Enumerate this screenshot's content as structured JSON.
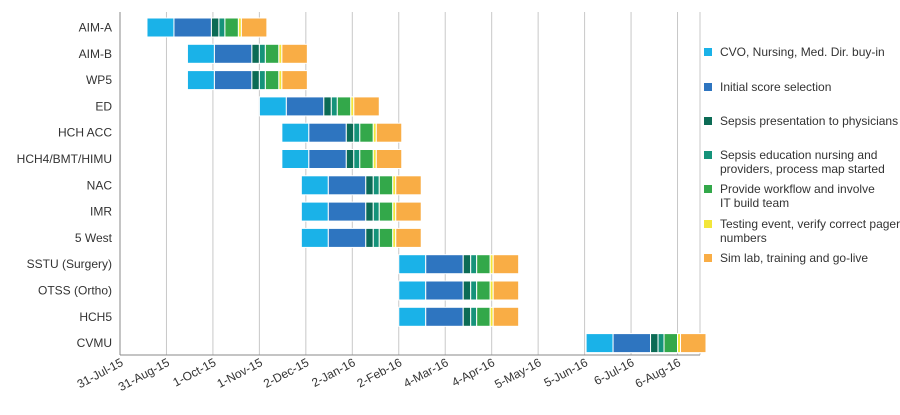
{
  "chart_data": {
    "type": "bar",
    "orientation": "horizontal",
    "stacked": true,
    "title": "",
    "xlabel": "",
    "ylabel": "",
    "x_ticks": [
      "31-Jul-15",
      "31-Aug-15",
      "1-Oct-15",
      "1-Nov-15",
      "2-Dec-15",
      "2-Jan-16",
      "2-Feb-16",
      "4-Mar-16",
      "4-Apr-16",
      "5-May-16",
      "5-Jun-16",
      "6-Jul-16",
      "6-Aug-16"
    ],
    "xlim": [
      "2015-07-31",
      "2016-08-21"
    ],
    "grid": "vertical",
    "legend_position": "right",
    "colors": {
      "CVO, Nursing, Med. Dir. buy-in": "#1ab2e8",
      "Initial score selection": "#2e75c0",
      "Sepsis presentation to physicians": "#0c6b55",
      "Sepsis education nursing and providers, process map started": "#15937a",
      "Provide workflow and involve IT build team": "#33a84a",
      "Testing event, verify correct pager numbers": "#f2e63a",
      "Sim lab, training and go-live": "#f9ad45"
    },
    "legend": [
      {
        "name": "CVO, Nursing, Med. Dir. buy-in",
        "lines": [
          "CVO, Nursing, Med. Dir. buy-in"
        ]
      },
      {
        "name": "Initial score selection",
        "lines": [
          "Initial score selection"
        ]
      },
      {
        "name": "Sepsis presentation to physicians",
        "lines": [
          "Sepsis presentation to physicians"
        ]
      },
      {
        "name": "Sepsis education nursing and providers, process map started",
        "lines": [
          "Sepsis education nursing and",
          "providers, process map started"
        ]
      },
      {
        "name": "Provide workflow and involve IT build team",
        "lines": [
          "Provide workflow and involve",
          "IT build team"
        ]
      },
      {
        "name": "Testing event, verify correct pager numbers",
        "lines": [
          "Testing event, verify correct pager",
          "numbers"
        ]
      },
      {
        "name": "Sim lab, training and go-live",
        "lines": [
          "Sim lab, training and go-live"
        ]
      }
    ],
    "categories": [
      "AIM-A",
      "AIM-B",
      "WP5",
      "ED",
      "HCH ACC",
      "HCH4/BMT/HIMU",
      "NAC",
      "IMR",
      "5 West",
      "SSTU (Surgery)",
      "OTSS (Ortho)",
      "HCH5",
      "CVMU"
    ],
    "tasks": [
      {
        "category": "AIM-A",
        "segments": [
          {
            "phase": "CVO, Nursing, Med. Dir. buy-in",
            "start": "2015-08-18",
            "end": "2015-09-05"
          },
          {
            "phase": "Initial score selection",
            "start": "2015-09-05",
            "end": "2015-09-30"
          },
          {
            "phase": "Sepsis presentation to physicians",
            "start": "2015-09-30",
            "end": "2015-10-05"
          },
          {
            "phase": "Sepsis education nursing and providers, process map started",
            "start": "2015-10-05",
            "end": "2015-10-09"
          },
          {
            "phase": "Provide workflow and involve IT build team",
            "start": "2015-10-09",
            "end": "2015-10-18"
          },
          {
            "phase": "Testing event, verify correct pager numbers",
            "start": "2015-10-18",
            "end": "2015-10-20"
          },
          {
            "phase": "Sim lab, training and go-live",
            "start": "2015-10-20",
            "end": "2015-11-06"
          }
        ]
      },
      {
        "category": "AIM-B",
        "segments": [
          {
            "phase": "CVO, Nursing, Med. Dir. buy-in",
            "start": "2015-09-14",
            "end": "2015-10-02"
          },
          {
            "phase": "Initial score selection",
            "start": "2015-10-02",
            "end": "2015-10-27"
          },
          {
            "phase": "Sepsis presentation to physicians",
            "start": "2015-10-27",
            "end": "2015-11-01"
          },
          {
            "phase": "Sepsis education nursing and providers, process map started",
            "start": "2015-11-01",
            "end": "2015-11-05"
          },
          {
            "phase": "Provide workflow and involve IT build team",
            "start": "2015-11-05",
            "end": "2015-11-14"
          },
          {
            "phase": "Testing event, verify correct pager numbers",
            "start": "2015-11-14",
            "end": "2015-11-16"
          },
          {
            "phase": "Sim lab, training and go-live",
            "start": "2015-11-16",
            "end": "2015-12-03"
          }
        ]
      },
      {
        "category": "WP5",
        "segments": [
          {
            "phase": "CVO, Nursing, Med. Dir. buy-in",
            "start": "2015-09-14",
            "end": "2015-10-02"
          },
          {
            "phase": "Initial score selection",
            "start": "2015-10-02",
            "end": "2015-10-27"
          },
          {
            "phase": "Sepsis presentation to physicians",
            "start": "2015-10-27",
            "end": "2015-11-01"
          },
          {
            "phase": "Sepsis education nursing and providers, process map started",
            "start": "2015-11-01",
            "end": "2015-11-05"
          },
          {
            "phase": "Provide workflow and involve IT build team",
            "start": "2015-11-05",
            "end": "2015-11-14"
          },
          {
            "phase": "Testing event, verify correct pager numbers",
            "start": "2015-11-14",
            "end": "2015-11-16"
          },
          {
            "phase": "Sim lab, training and go-live",
            "start": "2015-11-16",
            "end": "2015-12-03"
          }
        ]
      },
      {
        "category": "ED",
        "segments": [
          {
            "phase": "CVO, Nursing, Med. Dir. buy-in",
            "start": "2015-11-01",
            "end": "2015-11-19"
          },
          {
            "phase": "Initial score selection",
            "start": "2015-11-19",
            "end": "2015-12-14"
          },
          {
            "phase": "Sepsis presentation to physicians",
            "start": "2015-12-14",
            "end": "2015-12-19"
          },
          {
            "phase": "Sepsis education nursing and providers, process map started",
            "start": "2015-12-19",
            "end": "2015-12-23"
          },
          {
            "phase": "Provide workflow and involve IT build team",
            "start": "2015-12-23",
            "end": "2016-01-01"
          },
          {
            "phase": "Testing event, verify correct pager numbers",
            "start": "2016-01-01",
            "end": "2016-01-03"
          },
          {
            "phase": "Sim lab, training and go-live",
            "start": "2016-01-03",
            "end": "2016-01-20"
          }
        ]
      },
      {
        "category": "HCH ACC",
        "segments": [
          {
            "phase": "CVO, Nursing, Med. Dir. buy-in",
            "start": "2015-11-16",
            "end": "2015-12-04"
          },
          {
            "phase": "Initial score selection",
            "start": "2015-12-04",
            "end": "2015-12-29"
          },
          {
            "phase": "Sepsis presentation to physicians",
            "start": "2015-12-29",
            "end": "2016-01-03"
          },
          {
            "phase": "Sepsis education nursing and providers, process map started",
            "start": "2016-01-03",
            "end": "2016-01-07"
          },
          {
            "phase": "Provide workflow and involve IT build team",
            "start": "2016-01-07",
            "end": "2016-01-16"
          },
          {
            "phase": "Testing event, verify correct pager numbers",
            "start": "2016-01-16",
            "end": "2016-01-18"
          },
          {
            "phase": "Sim lab, training and go-live",
            "start": "2016-01-18",
            "end": "2016-02-04"
          }
        ]
      },
      {
        "category": "HCH4/BMT/HIMU",
        "segments": [
          {
            "phase": "CVO, Nursing, Med. Dir. buy-in",
            "start": "2015-11-16",
            "end": "2015-12-04"
          },
          {
            "phase": "Initial score selection",
            "start": "2015-12-04",
            "end": "2015-12-29"
          },
          {
            "phase": "Sepsis presentation to physicians",
            "start": "2015-12-29",
            "end": "2016-01-03"
          },
          {
            "phase": "Sepsis education nursing and providers, process map started",
            "start": "2016-01-03",
            "end": "2016-01-07"
          },
          {
            "phase": "Provide workflow and involve IT build team",
            "start": "2016-01-07",
            "end": "2016-01-16"
          },
          {
            "phase": "Testing event, verify correct pager numbers",
            "start": "2016-01-16",
            "end": "2016-01-18"
          },
          {
            "phase": "Sim lab, training and go-live",
            "start": "2016-01-18",
            "end": "2016-02-04"
          }
        ]
      },
      {
        "category": "NAC",
        "segments": [
          {
            "phase": "CVO, Nursing, Med. Dir. buy-in",
            "start": "2015-11-29",
            "end": "2015-12-17"
          },
          {
            "phase": "Initial score selection",
            "start": "2015-12-17",
            "end": "2016-01-11"
          },
          {
            "phase": "Sepsis presentation to physicians",
            "start": "2016-01-11",
            "end": "2016-01-16"
          },
          {
            "phase": "Sepsis education nursing and providers, process map started",
            "start": "2016-01-16",
            "end": "2016-01-20"
          },
          {
            "phase": "Provide workflow and involve IT build team",
            "start": "2016-01-20",
            "end": "2016-01-29"
          },
          {
            "phase": "Testing event, verify correct pager numbers",
            "start": "2016-01-29",
            "end": "2016-01-31"
          },
          {
            "phase": "Sim lab, training and go-live",
            "start": "2016-01-31",
            "end": "2016-02-17"
          }
        ]
      },
      {
        "category": "IMR",
        "segments": [
          {
            "phase": "CVO, Nursing, Med. Dir. buy-in",
            "start": "2015-11-29",
            "end": "2015-12-17"
          },
          {
            "phase": "Initial score selection",
            "start": "2015-12-17",
            "end": "2016-01-11"
          },
          {
            "phase": "Sepsis presentation to physicians",
            "start": "2016-01-11",
            "end": "2016-01-16"
          },
          {
            "phase": "Sepsis education nursing and providers, process map started",
            "start": "2016-01-16",
            "end": "2016-01-20"
          },
          {
            "phase": "Provide workflow and involve IT build team",
            "start": "2016-01-20",
            "end": "2016-01-29"
          },
          {
            "phase": "Testing event, verify correct pager numbers",
            "start": "2016-01-29",
            "end": "2016-01-31"
          },
          {
            "phase": "Sim lab, training and go-live",
            "start": "2016-01-31",
            "end": "2016-02-17"
          }
        ]
      },
      {
        "category": "5 West",
        "segments": [
          {
            "phase": "CVO, Nursing, Med. Dir. buy-in",
            "start": "2015-11-29",
            "end": "2015-12-17"
          },
          {
            "phase": "Initial score selection",
            "start": "2015-12-17",
            "end": "2016-01-11"
          },
          {
            "phase": "Sepsis presentation to physicians",
            "start": "2016-01-11",
            "end": "2016-01-16"
          },
          {
            "phase": "Sepsis education nursing and providers, process map started",
            "start": "2016-01-16",
            "end": "2016-01-20"
          },
          {
            "phase": "Provide workflow and involve IT build team",
            "start": "2016-01-20",
            "end": "2016-01-29"
          },
          {
            "phase": "Testing event, verify correct pager numbers",
            "start": "2016-01-29",
            "end": "2016-01-31"
          },
          {
            "phase": "Sim lab, training and go-live",
            "start": "2016-01-31",
            "end": "2016-02-17"
          }
        ]
      },
      {
        "category": "SSTU (Surgery)",
        "segments": [
          {
            "phase": "CVO, Nursing, Med. Dir. buy-in",
            "start": "2016-02-02",
            "end": "2016-02-20"
          },
          {
            "phase": "Initial score selection",
            "start": "2016-02-20",
            "end": "2016-03-16"
          },
          {
            "phase": "Sepsis presentation to physicians",
            "start": "2016-03-16",
            "end": "2016-03-21"
          },
          {
            "phase": "Sepsis education nursing and providers, process map started",
            "start": "2016-03-21",
            "end": "2016-03-25"
          },
          {
            "phase": "Provide workflow and involve IT build team",
            "start": "2016-03-25",
            "end": "2016-04-03"
          },
          {
            "phase": "Testing event, verify correct pager numbers",
            "start": "2016-04-03",
            "end": "2016-04-05"
          },
          {
            "phase": "Sim lab, training and go-live",
            "start": "2016-04-05",
            "end": "2016-04-22"
          }
        ]
      },
      {
        "category": "OTSS (Ortho)",
        "segments": [
          {
            "phase": "CVO, Nursing, Med. Dir. buy-in",
            "start": "2016-02-02",
            "end": "2016-02-20"
          },
          {
            "phase": "Initial score selection",
            "start": "2016-02-20",
            "end": "2016-03-16"
          },
          {
            "phase": "Sepsis presentation to physicians",
            "start": "2016-03-16",
            "end": "2016-03-21"
          },
          {
            "phase": "Sepsis education nursing and providers, process map started",
            "start": "2016-03-21",
            "end": "2016-03-25"
          },
          {
            "phase": "Provide workflow and involve IT build team",
            "start": "2016-03-25",
            "end": "2016-04-03"
          },
          {
            "phase": "Testing event, verify correct pager numbers",
            "start": "2016-04-03",
            "end": "2016-04-05"
          },
          {
            "phase": "Sim lab, training and go-live",
            "start": "2016-04-05",
            "end": "2016-04-22"
          }
        ]
      },
      {
        "category": "HCH5",
        "segments": [
          {
            "phase": "CVO, Nursing, Med. Dir. buy-in",
            "start": "2016-02-02",
            "end": "2016-02-20"
          },
          {
            "phase": "Initial score selection",
            "start": "2016-02-20",
            "end": "2016-03-16"
          },
          {
            "phase": "Sepsis presentation to physicians",
            "start": "2016-03-16",
            "end": "2016-03-21"
          },
          {
            "phase": "Sepsis education nursing and providers, process map started",
            "start": "2016-03-21",
            "end": "2016-03-25"
          },
          {
            "phase": "Provide workflow and involve IT build team",
            "start": "2016-03-25",
            "end": "2016-04-03"
          },
          {
            "phase": "Testing event, verify correct pager numbers",
            "start": "2016-04-03",
            "end": "2016-04-05"
          },
          {
            "phase": "Sim lab, training and go-live",
            "start": "2016-04-05",
            "end": "2016-04-22"
          }
        ]
      },
      {
        "category": "CVMU",
        "segments": [
          {
            "phase": "CVO, Nursing, Med. Dir. buy-in",
            "start": "2016-06-06",
            "end": "2016-06-24"
          },
          {
            "phase": "Initial score selection",
            "start": "2016-06-24",
            "end": "2016-07-19"
          },
          {
            "phase": "Sepsis presentation to physicians",
            "start": "2016-07-19",
            "end": "2016-07-24"
          },
          {
            "phase": "Sepsis education nursing and providers, process map started",
            "start": "2016-07-24",
            "end": "2016-07-28"
          },
          {
            "phase": "Provide workflow and involve IT build team",
            "start": "2016-07-28",
            "end": "2016-08-06"
          },
          {
            "phase": "Testing event, verify correct pager numbers",
            "start": "2016-08-06",
            "end": "2016-08-08"
          },
          {
            "phase": "Sim lab, training and go-live",
            "start": "2016-08-08",
            "end": "2016-08-25"
          }
        ]
      }
    ]
  }
}
